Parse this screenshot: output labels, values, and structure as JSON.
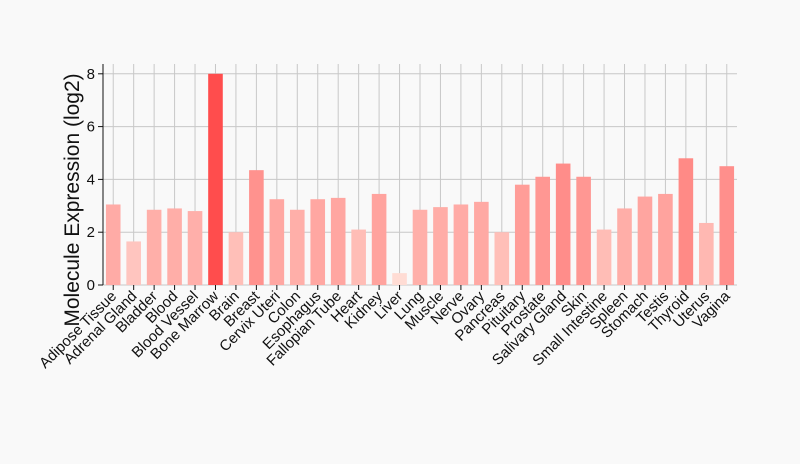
{
  "chart_data": {
    "type": "bar",
    "title": "",
    "xlabel": "",
    "ylabel": "Molecule Expression (log2)",
    "ylim": [
      -0.3,
      8.4
    ],
    "yticks": [
      0,
      2,
      4,
      6,
      8
    ],
    "grid": true,
    "legend": "none",
    "categories": [
      "Adipose Tissue",
      "Adrenal Gland",
      "Bladder",
      "Blood",
      "Blood Vessel",
      "Bone Marrow",
      "Brain",
      "Breast",
      "Cervix Uteri",
      "Colon",
      "Esophagus",
      "Fallopian Tube",
      "Heart",
      "Kidney",
      "Liver",
      "Lung",
      "Muscle",
      "Nerve",
      "Ovary",
      "Pancreas",
      "Pituitary",
      "Prostate",
      "Salivary Gland",
      "Skin",
      "Small Intestine",
      "Spleen",
      "Stomach",
      "Testis",
      "Thyroid",
      "Uterus",
      "Vagina"
    ],
    "values": [
      3.05,
      1.65,
      2.85,
      2.9,
      2.8,
      8.0,
      2.0,
      4.35,
      3.25,
      2.85,
      3.25,
      3.3,
      2.1,
      3.45,
      0.45,
      2.85,
      2.95,
      3.05,
      3.15,
      2.0,
      3.8,
      4.1,
      4.6,
      4.1,
      2.1,
      2.9,
      3.35,
      3.45,
      4.8,
      2.35,
      4.5
    ],
    "colors": {
      "max": "#ff4d4d",
      "min": "#ffdcd4",
      "grid": "#c8c8c8",
      "axis": "#111111"
    }
  }
}
